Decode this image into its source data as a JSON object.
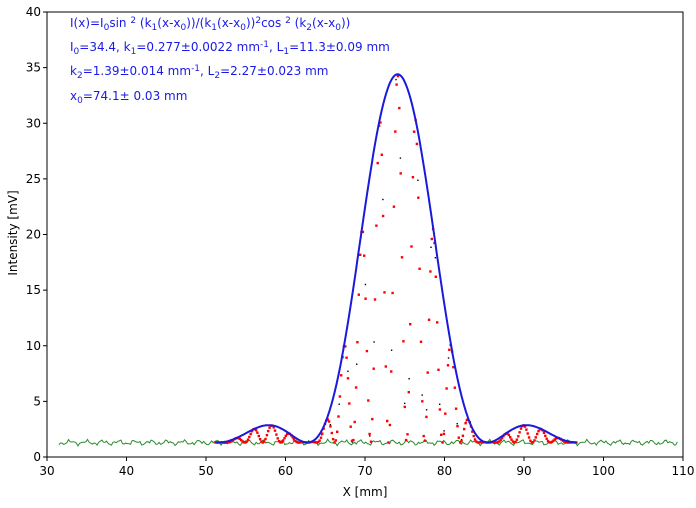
{
  "chart_data": {
    "type": "scatter",
    "xlabel": "X [mm]",
    "ylabel": "Intensity [mV]",
    "xlim": [
      30,
      110
    ],
    "ylim": [
      0,
      40
    ],
    "x_ticks": [
      "30",
      "40",
      "50",
      "60",
      "70",
      "80",
      "90",
      "100",
      "110"
    ],
    "y_ticks": [
      "0",
      "5",
      "10",
      "15",
      "20",
      "25",
      "30",
      "35",
      "40"
    ],
    "grid": false,
    "annotations": [
      "I(x)=I0sin 2 (k1(x-x0))/(k1(x-x0))2cos 2 (k2(x-x0))",
      "I0=34.4,  k1=0.277±0.0022 mm-1,   L1=11.3±0.09 mm",
      "k2=1.39±0.014 mm-1,   L2=2.27±0.023 mm",
      "x0=74.1±  0.03 mm"
    ],
    "fit": {
      "I0": 34.4,
      "I_offset": 1.3,
      "k1": 0.277,
      "k2": 1.39,
      "x0": 74.1,
      "x_range": [
        51.2,
        96.6
      ]
    },
    "series": [
      {
        "color": "#2a8a2a",
        "style": "background-trace"
      },
      {
        "color": "#ff0000",
        "style": "red-markers"
      },
      {
        "color": "#1a1adc",
        "style": "envelope-line"
      },
      {
        "color": "#000000",
        "style": "black-dots"
      }
    ]
  },
  "annotation_text": {
    "line1": {
      "a": "I(x)=I",
      "b": "0",
      "c": "sin ",
      "d": "2",
      "e": " (k",
      "f": "1",
      "g": "(x-x",
      "h": "0",
      "i": "))/(k",
      "j": "1",
      "k": "(x-x",
      "l": "0",
      "m": "))",
      "n": "2",
      "o": "cos ",
      "p": "2",
      "q": " (k",
      "r": "2",
      "s": "(x-x",
      "t": "0",
      "u": "))"
    },
    "line2": {
      "a": "I",
      "b": "0",
      "c": "=34.4,  k",
      "d": "1",
      "e": "=0.277±0.0022 mm",
      "f": "-1",
      "g": ",   L",
      "h": "1",
      "i": "=11.3±0.09 mm"
    },
    "line3": {
      "a": "k",
      "b": "2",
      "c": "=1.39±0.014 mm",
      "d": "-1",
      "e": ",   L",
      "f": "2",
      "g": "=2.27±0.023 mm"
    },
    "line4": {
      "a": "x",
      "b": "0",
      "c": "=74.1±  0.03 mm"
    }
  }
}
